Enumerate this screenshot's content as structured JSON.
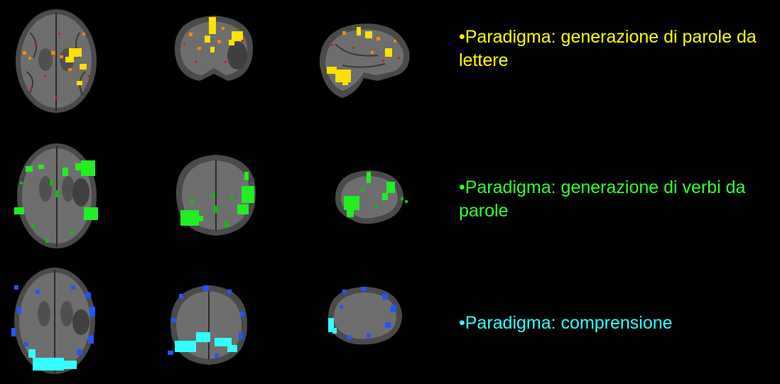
{
  "rows": [
    {
      "id": "generazione-parole",
      "color": "#FFFF00",
      "activation_colors": [
        "#FFE000",
        "#FF8800",
        "#CC2200"
      ],
      "caption": "•Paradigma: generazione di parole da lettere",
      "views": [
        "axial",
        "coronal",
        "sagittal"
      ]
    },
    {
      "id": "generazione-verbi",
      "color": "#33FF33",
      "activation_colors": [
        "#22EE22",
        "#11BB11"
      ],
      "caption": "•Paradigma: generazione di verbi da parole",
      "views": [
        "axial",
        "coronal",
        "sagittal"
      ]
    },
    {
      "id": "comprensione",
      "color": "#33FFFF",
      "activation_colors": [
        "#2255FF",
        "#33FFFF"
      ],
      "caption": "•Paradigma: comprensione",
      "views": [
        "axial",
        "coronal",
        "sagittal"
      ]
    }
  ]
}
